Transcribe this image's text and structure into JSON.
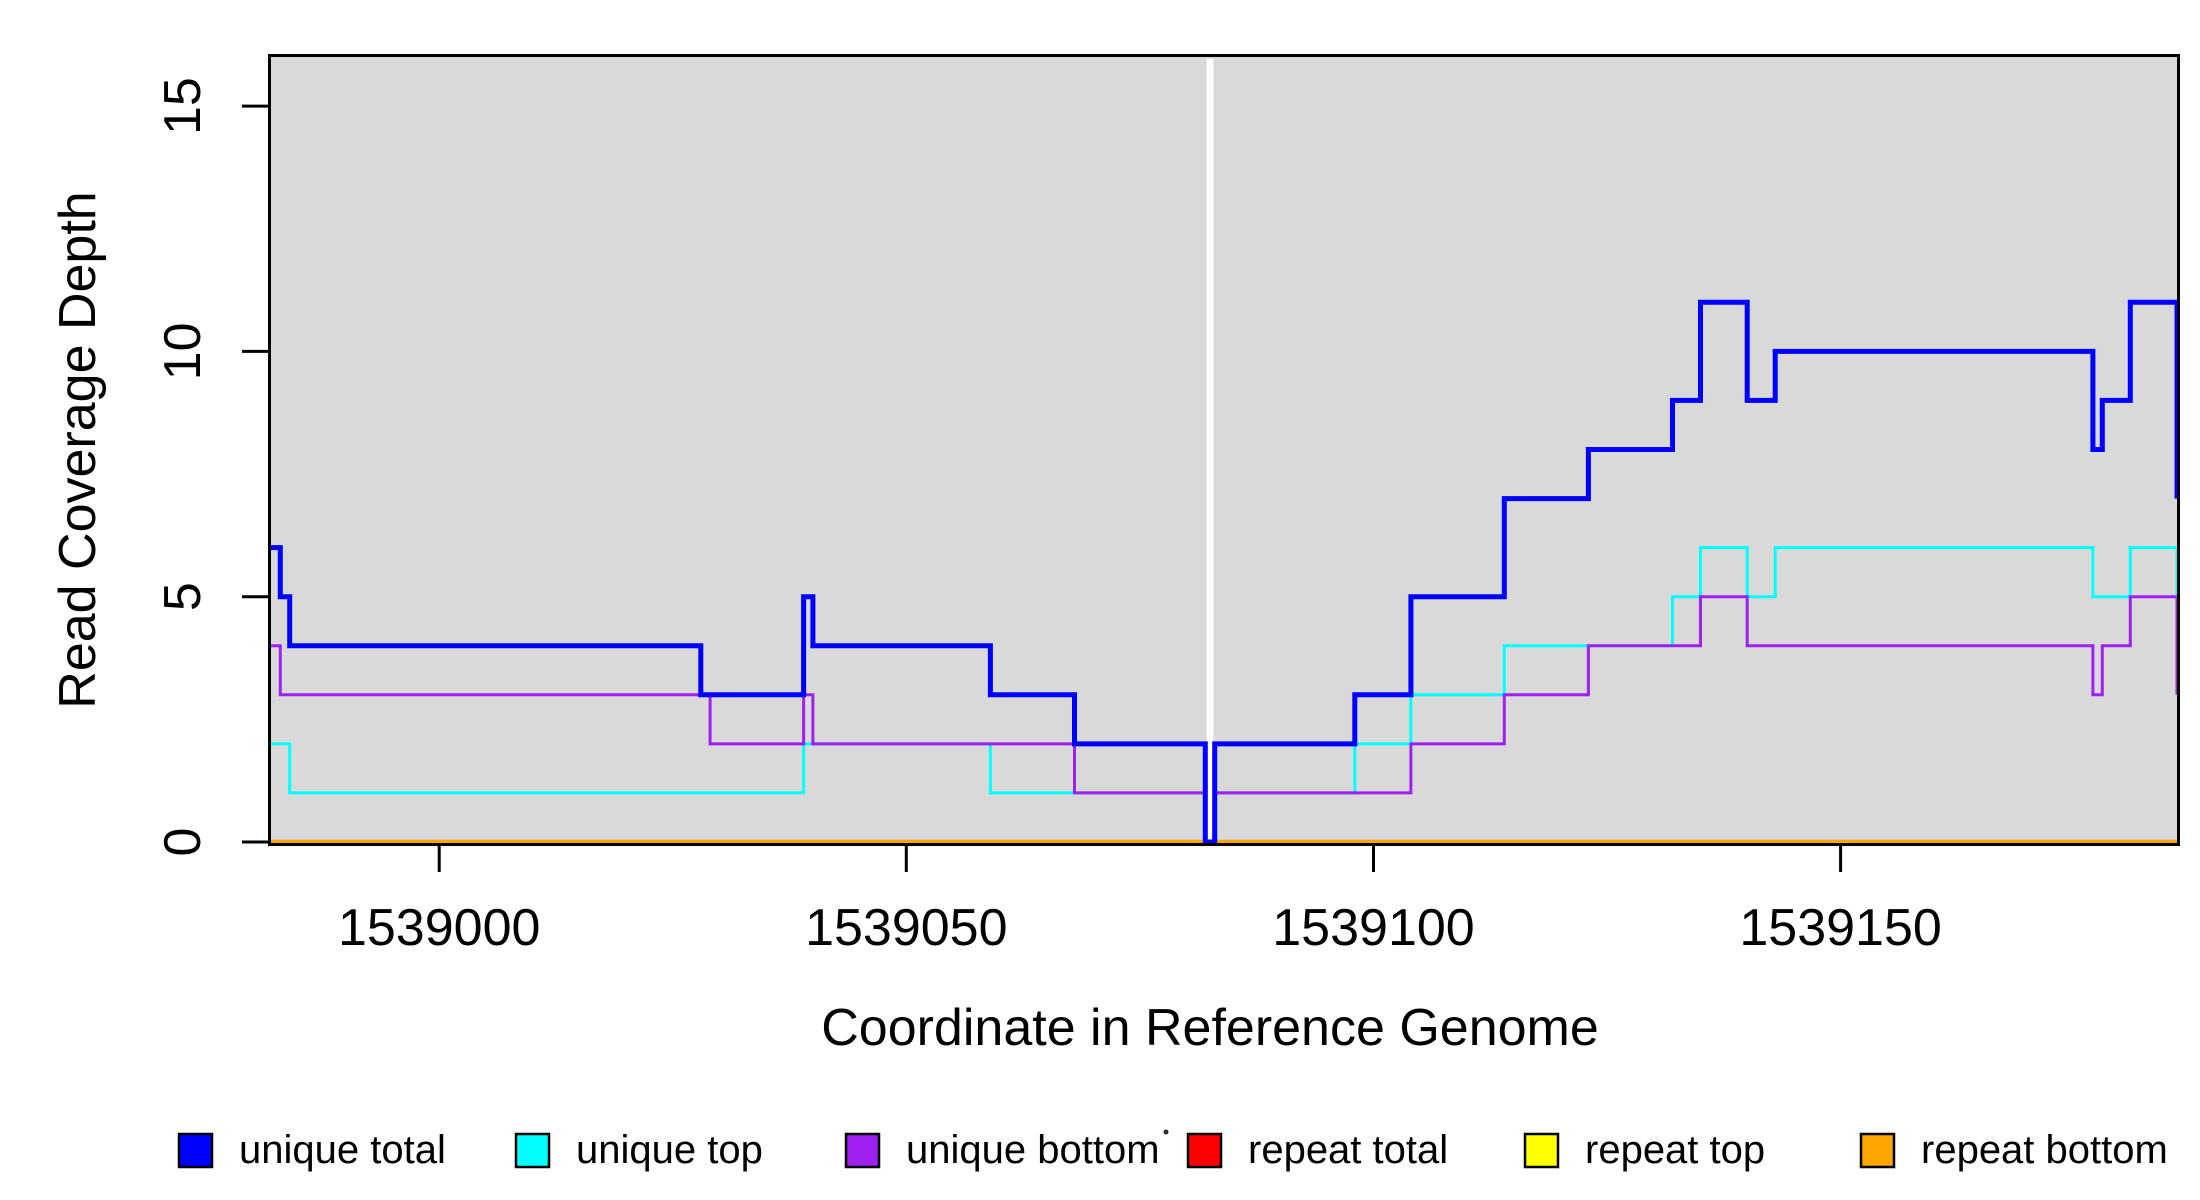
{
  "figure": {
    "background": "#FFFFFF",
    "plot_background": "#D9D9D9"
  },
  "chart_data": {
    "type": "line",
    "subtype": "step",
    "title": "",
    "xlabel": "Coordinate in Reference Genome",
    "ylabel": "Read Coverage Depth",
    "xlim": [
      1538982,
      1539186
    ],
    "ylim": [
      0,
      16
    ],
    "grid": "off",
    "plot_bg": "#D9D9D9",
    "x_ticks": [
      1539000,
      1539050,
      1539100,
      1539150
    ],
    "x_tick_labels": [
      "1539000",
      "1539050",
      "1539100",
      "1539150"
    ],
    "y_ticks": [
      0,
      5,
      10,
      15
    ],
    "y_tick_labels": [
      "0",
      "5",
      "10",
      "15"
    ],
    "marker_line": {
      "position_bp": 1539082.5,
      "color": "#FFFFFF",
      "description": "vertical white gap line where coverage drops to 0"
    },
    "legend_position": "bottom",
    "draw_order": [
      "repeat total",
      "repeat top",
      "repeat bottom",
      "unique top",
      "unique bottom",
      "unique total"
    ],
    "series": [
      {
        "name": "unique total",
        "color": "#0000FF",
        "width": 5,
        "steps": [
          [
            1538982,
            6
          ],
          [
            1538983,
            5
          ],
          [
            1538984,
            4
          ],
          [
            1539028,
            3
          ],
          [
            1539039,
            5
          ],
          [
            1539040,
            4
          ],
          [
            1539059,
            3
          ],
          [
            1539068,
            2
          ],
          [
            1539082,
            0
          ],
          [
            1539083,
            2
          ],
          [
            1539098,
            3
          ],
          [
            1539104,
            5
          ],
          [
            1539114,
            7
          ],
          [
            1539123,
            8
          ],
          [
            1539132,
            9
          ],
          [
            1539135,
            11
          ],
          [
            1539140,
            9
          ],
          [
            1539143,
            10
          ],
          [
            1539177,
            8
          ],
          [
            1539178,
            9
          ],
          [
            1539181,
            11
          ],
          [
            1539186,
            7
          ]
        ]
      },
      {
        "name": "unique top",
        "color": "#00FFFF",
        "width": 3,
        "steps": [
          [
            1538982,
            2
          ],
          [
            1538984,
            1
          ],
          [
            1539039,
            2
          ],
          [
            1539059,
            1
          ],
          [
            1539082,
            0
          ],
          [
            1539083,
            1
          ],
          [
            1539098,
            2
          ],
          [
            1539104,
            3
          ],
          [
            1539114,
            4
          ],
          [
            1539132,
            5
          ],
          [
            1539135,
            6
          ],
          [
            1539140,
            5
          ],
          [
            1539143,
            6
          ],
          [
            1539177,
            5
          ],
          [
            1539181,
            6
          ],
          [
            1539186,
            5
          ]
        ]
      },
      {
        "name": "unique bottom",
        "color": "#A020F0",
        "width": 3,
        "steps": [
          [
            1538982,
            4
          ],
          [
            1538983,
            3
          ],
          [
            1539029,
            2
          ],
          [
            1539039,
            3
          ],
          [
            1539040,
            2
          ],
          [
            1539068,
            1
          ],
          [
            1539082,
            0
          ],
          [
            1539083,
            1
          ],
          [
            1539104,
            2
          ],
          [
            1539114,
            3
          ],
          [
            1539123,
            4
          ],
          [
            1539135,
            5
          ],
          [
            1539140,
            4
          ],
          [
            1539177,
            3
          ],
          [
            1539178,
            4
          ],
          [
            1539181,
            5
          ],
          [
            1539186,
            3
          ]
        ]
      },
      {
        "name": "repeat total",
        "color": "#FF0000",
        "width": 3,
        "steps": [
          [
            1538982,
            0
          ]
        ]
      },
      {
        "name": "repeat top",
        "color": "#FFFF00",
        "width": 3,
        "steps": [
          [
            1538982,
            0
          ]
        ]
      },
      {
        "name": "repeat bottom",
        "color": "#FFA500",
        "width": 4.5,
        "steps": [
          [
            1538982,
            0
          ]
        ]
      }
    ]
  },
  "legend": {
    "items": [
      {
        "label": "unique total",
        "color": "#0000FF"
      },
      {
        "label": "unique top",
        "color": "#00FFFF"
      },
      {
        "label": "unique bottom",
        "color": "#A020F0"
      },
      {
        "label": "repeat total",
        "color": "#FF0000"
      },
      {
        "label": "repeat top",
        "color": "#FFFF00"
      },
      {
        "label": "repeat bottom",
        "color": "#FFA500"
      }
    ]
  },
  "artifacts": {
    "stray_dot": {
      "color": "#2A2A2A"
    }
  }
}
